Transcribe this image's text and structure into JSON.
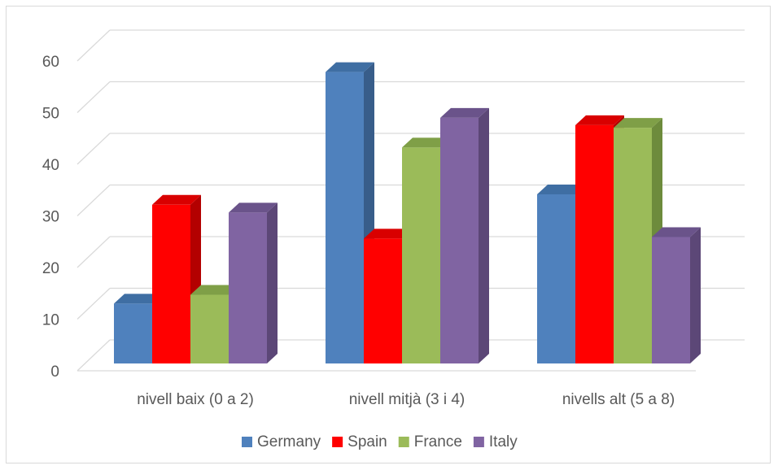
{
  "chart_data": {
    "type": "bar",
    "categories": [
      "nivell baix (0 a 2)",
      "nivell mitjà (3 i 4)",
      "nivells alt (5 a 8)"
    ],
    "series": [
      {
        "name": "Germany",
        "values": [
          11.5,
          56,
          32.5
        ],
        "color": "#4f81bd",
        "side": "#385d8a",
        "top": "#3f6ea3"
      },
      {
        "name": "Spain",
        "values": [
          30.5,
          24,
          45.8
        ],
        "color": "#ff0000",
        "side": "#b30000",
        "top": "#d90000"
      },
      {
        "name": "France",
        "values": [
          13.2,
          41.5,
          45.3
        ],
        "color": "#9bbb59",
        "side": "#6d8b3c",
        "top": "#7f9f47"
      },
      {
        "name": "Italy",
        "values": [
          29,
          47.2,
          24.3
        ],
        "color": "#8064a2",
        "side": "#5c4777",
        "top": "#6a538a"
      }
    ],
    "yticks": [
      0,
      10,
      20,
      30,
      40,
      50,
      60
    ],
    "ylim": [
      0,
      60
    ],
    "grid": true,
    "legend": "bottom"
  }
}
